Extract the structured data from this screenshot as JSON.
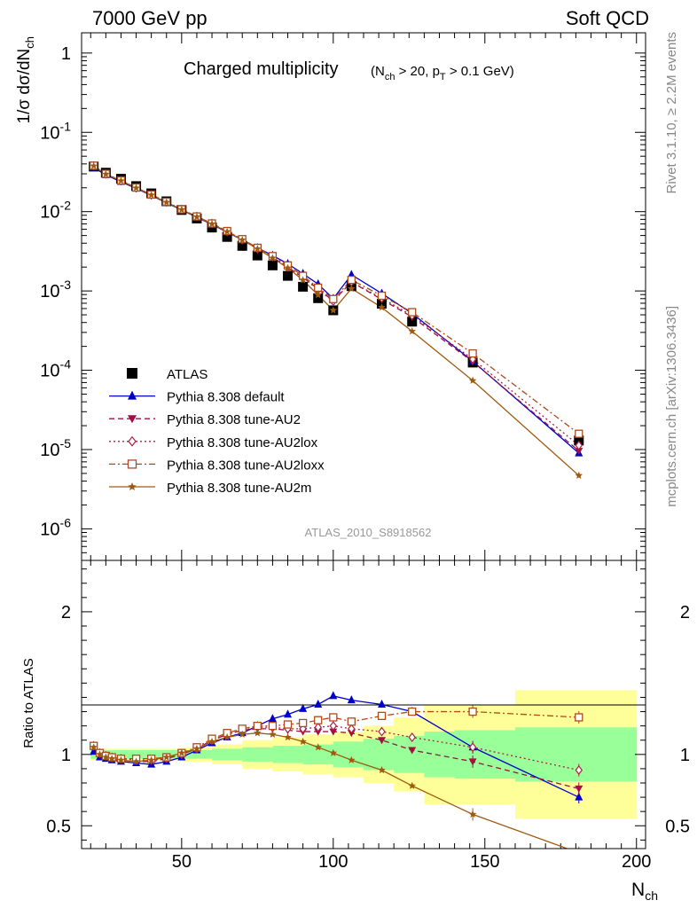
{
  "header": {
    "left": "7000 GeV pp",
    "right": "Soft QCD"
  },
  "side": {
    "rivet": "Rivet 3.1.10, ≥ 2.2M events",
    "mcplots": "mcplots.cern.ch [arXiv:1306.3436]"
  },
  "analysis_id": "ATLAS_2010_S8918562",
  "colors": {
    "ATLAS": "#000000",
    "default": "#0000cc",
    "AU2": "#a01040",
    "AU2lox": "#b02040",
    "AU2loxx": "#b04a18",
    "AU2m": "#a05a10",
    "band_inner": "#99ff99",
    "band_outer": "#ffff99"
  },
  "chart_data": [
    {
      "type": "scatter",
      "title": "Charged multiplicity",
      "title_cuts": "(N_ch > 20, p_T > 0.1 GeV)",
      "ylabel": "1/σ dσ/dN_ch",
      "yscale": "log",
      "ylim": [
        4e-07,
        1.8
      ],
      "xlim": [
        17,
        203
      ],
      "ytick_labels": [
        "1",
        "10^-1",
        "10^-2",
        "10^-3",
        "10^-4",
        "10^-5",
        "10^-6"
      ],
      "legend_position": "bottom-left",
      "series": [
        {
          "name": "ATLAS",
          "key": "ATLAS",
          "marker": "square",
          "x": [
            21,
            25,
            30,
            35,
            40,
            45,
            50,
            55,
            60,
            65,
            70,
            75,
            80,
            85,
            90,
            95,
            100,
            106,
            116,
            126,
            146,
            181
          ],
          "y": [
            0.037,
            0.031,
            0.026,
            0.021,
            0.017,
            0.0135,
            0.0105,
            0.0082,
            0.0063,
            0.0048,
            0.0037,
            0.0028,
            0.0021,
            0.00155,
            0.00113,
            0.00081,
            0.00057,
            0.00115,
            0.00069,
            0.00041,
            0.000125,
            1.3e-05
          ]
        },
        {
          "name": "Pythia 8.308 default",
          "key": "default",
          "marker": "triangle-up",
          "line": "solid",
          "x": [
            21,
            25,
            30,
            35,
            40,
            45,
            50,
            55,
            60,
            65,
            70,
            75,
            80,
            85,
            90,
            95,
            100,
            106,
            116,
            126,
            146,
            181
          ],
          "y": [
            0.036,
            0.029,
            0.0238,
            0.0196,
            0.016,
            0.0129,
            0.0105,
            0.0085,
            0.0069,
            0.0055,
            0.0044,
            0.0035,
            0.0028,
            0.0022,
            0.00165,
            0.00122,
            0.0008,
            0.0016,
            0.00093,
            0.00052,
            0.00013,
            9e-06
          ]
        },
        {
          "name": "Pythia 8.308 tune-AU2",
          "key": "AU2",
          "marker": "triangle-down",
          "line": "dashed",
          "x": [
            21,
            25,
            30,
            35,
            40,
            45,
            50,
            55,
            60,
            65,
            70,
            75,
            80,
            85,
            90,
            95,
            100,
            106,
            116,
            126,
            146,
            181
          ],
          "y": [
            0.0375,
            0.0296,
            0.0244,
            0.0199,
            0.0162,
            0.0131,
            0.0106,
            0.0086,
            0.007,
            0.0056,
            0.0044,
            0.0034,
            0.00265,
            0.002,
            0.00148,
            0.00106,
            0.00075,
            0.0013,
            0.00078,
            0.00047,
            0.000128,
            9.6e-06
          ]
        },
        {
          "name": "Pythia 8.308 tune-AU2lox",
          "key": "AU2lox",
          "marker": "diamond-open",
          "line": "dotted",
          "x": [
            21,
            25,
            30,
            35,
            40,
            45,
            50,
            55,
            60,
            65,
            70,
            75,
            80,
            85,
            90,
            95,
            100,
            106,
            116,
            126,
            146,
            181
          ],
          "y": [
            0.0378,
            0.0298,
            0.0246,
            0.02,
            0.0163,
            0.0132,
            0.0107,
            0.0087,
            0.0071,
            0.0056,
            0.0044,
            0.0034,
            0.0027,
            0.002,
            0.00146,
            0.00104,
            0.00074,
            0.0013,
            0.00081,
            0.00049,
            0.000138,
            1.13e-05
          ]
        },
        {
          "name": "Pythia 8.308 tune-AU2loxx",
          "key": "AU2loxx",
          "marker": "square-open",
          "line": "dashdot",
          "x": [
            21,
            25,
            30,
            35,
            40,
            45,
            50,
            55,
            60,
            65,
            70,
            75,
            80,
            85,
            90,
            95,
            100,
            106,
            116,
            126,
            146,
            181
          ],
          "y": [
            0.038,
            0.03,
            0.0247,
            0.0201,
            0.0164,
            0.0133,
            0.0107,
            0.0087,
            0.0071,
            0.0057,
            0.0045,
            0.0035,
            0.00275,
            0.0021,
            0.00155,
            0.0011,
            0.00079,
            0.00138,
            0.00087,
            0.00054,
            0.000163,
            1.58e-05
          ]
        },
        {
          "name": "Pythia 8.308 tune-AU2m",
          "key": "AU2m",
          "marker": "star",
          "line": "solid",
          "x": [
            21,
            25,
            30,
            35,
            40,
            45,
            50,
            55,
            60,
            65,
            70,
            75,
            80,
            85,
            90,
            95,
            100,
            106,
            116,
            126,
            146,
            181
          ],
          "y": [
            0.0377,
            0.0297,
            0.0245,
            0.0199,
            0.0162,
            0.0131,
            0.0106,
            0.0086,
            0.007,
            0.0056,
            0.0044,
            0.0034,
            0.0026,
            0.00195,
            0.00137,
            0.00089,
            0.00057,
            0.00107,
            0.00062,
            0.00031,
            7.4e-05,
            4.7e-06
          ]
        }
      ]
    },
    {
      "type": "line",
      "ylabel": "Ratio to ATLAS",
      "xlabel": "N_ch",
      "ylim": [
        0.34,
        2.36
      ],
      "xlim": [
        17,
        203
      ],
      "yticks": [
        0.5,
        1,
        2
      ],
      "ytick_labels": [
        "0.5",
        "1",
        "2"
      ],
      "xticks": [
        50,
        100,
        150,
        200
      ],
      "xtick_labels": [
        "50",
        "100",
        "150",
        "200"
      ],
      "bands": {
        "x_edges": [
          20,
          30,
          40,
          50,
          60,
          70,
          80,
          90,
          100,
          110,
          120,
          130,
          140,
          160,
          200
        ],
        "inner_half": [
          0.03,
          0.03,
          0.03,
          0.03,
          0.04,
          0.05,
          0.06,
          0.07,
          0.09,
          0.11,
          0.13,
          0.16,
          0.17,
          0.19
        ],
        "outer_half": [
          0.04,
          0.04,
          0.04,
          0.05,
          0.07,
          0.1,
          0.12,
          0.14,
          0.16,
          0.2,
          0.26,
          0.35,
          0.35,
          0.45
        ]
      },
      "series": [
        {
          "name": "Pythia 8.308 default",
          "key": "default",
          "marker": "triangle-up",
          "line": "solid",
          "x": [
            21,
            23,
            25,
            27,
            30,
            35,
            40,
            45,
            50,
            55,
            60,
            65,
            70,
            75,
            80,
            85,
            90,
            95,
            100,
            106,
            116,
            126,
            146,
            181
          ],
          "y": [
            1.02,
            0.98,
            0.97,
            0.96,
            0.95,
            0.94,
            0.93,
            0.95,
            0.98,
            1.03,
            1.08,
            1.12,
            1.15,
            1.2,
            1.25,
            1.28,
            1.32,
            1.35,
            1.41,
            1.38,
            1.35,
            1.3,
            1.05,
            0.7
          ]
        },
        {
          "name": "Pythia 8.308 tune-AU2",
          "key": "AU2",
          "marker": "triangle-down",
          "line": "dashed",
          "x": [
            21,
            23,
            25,
            27,
            30,
            35,
            40,
            45,
            50,
            55,
            60,
            65,
            70,
            75,
            80,
            85,
            90,
            95,
            100,
            106,
            116,
            126,
            146,
            181
          ],
          "y": [
            1.05,
            1.0,
            0.98,
            0.97,
            0.96,
            0.95,
            0.95,
            0.97,
            1.0,
            1.04,
            1.1,
            1.14,
            1.17,
            1.18,
            1.18,
            1.17,
            1.16,
            1.16,
            1.16,
            1.15,
            1.1,
            1.03,
            0.95,
            0.76
          ]
        },
        {
          "name": "Pythia 8.308 tune-AU2lox",
          "key": "AU2lox",
          "marker": "diamond-open",
          "line": "dotted",
          "x": [
            21,
            23,
            25,
            27,
            30,
            35,
            40,
            45,
            50,
            55,
            60,
            65,
            70,
            75,
            80,
            85,
            90,
            95,
            100,
            106,
            116,
            126,
            146,
            181
          ],
          "y": [
            1.06,
            1.01,
            0.99,
            0.98,
            0.97,
            0.96,
            0.96,
            0.97,
            1.0,
            1.04,
            1.1,
            1.14,
            1.17,
            1.19,
            1.19,
            1.18,
            1.18,
            1.19,
            1.2,
            1.18,
            1.16,
            1.12,
            1.05,
            0.89
          ]
        },
        {
          "name": "Pythia 8.308 tune-AU2loxx",
          "key": "AU2loxx",
          "marker": "square-open",
          "line": "dashdot",
          "x": [
            21,
            23,
            25,
            27,
            30,
            35,
            40,
            45,
            50,
            55,
            60,
            65,
            70,
            75,
            80,
            85,
            90,
            95,
            100,
            106,
            116,
            126,
            146,
            181
          ],
          "y": [
            1.06,
            1.01,
            0.99,
            0.98,
            0.97,
            0.97,
            0.97,
            0.98,
            1.01,
            1.05,
            1.11,
            1.15,
            1.18,
            1.2,
            1.2,
            1.21,
            1.22,
            1.24,
            1.26,
            1.23,
            1.27,
            1.3,
            1.3,
            1.26
          ]
        },
        {
          "name": "Pythia 8.308 tune-AU2m",
          "key": "AU2m",
          "marker": "star",
          "line": "solid",
          "x": [
            21,
            23,
            25,
            27,
            30,
            35,
            40,
            45,
            50,
            55,
            60,
            65,
            70,
            75,
            80,
            85,
            90,
            95,
            100,
            106,
            116,
            126,
            146,
            181
          ],
          "y": [
            1.05,
            1.0,
            0.98,
            0.97,
            0.96,
            0.95,
            0.96,
            0.98,
            1.01,
            1.04,
            1.09,
            1.12,
            1.14,
            1.15,
            1.14,
            1.12,
            1.09,
            1.05,
            1.01,
            0.96,
            0.89,
            0.78,
            0.58,
            0.31
          ]
        }
      ]
    }
  ]
}
